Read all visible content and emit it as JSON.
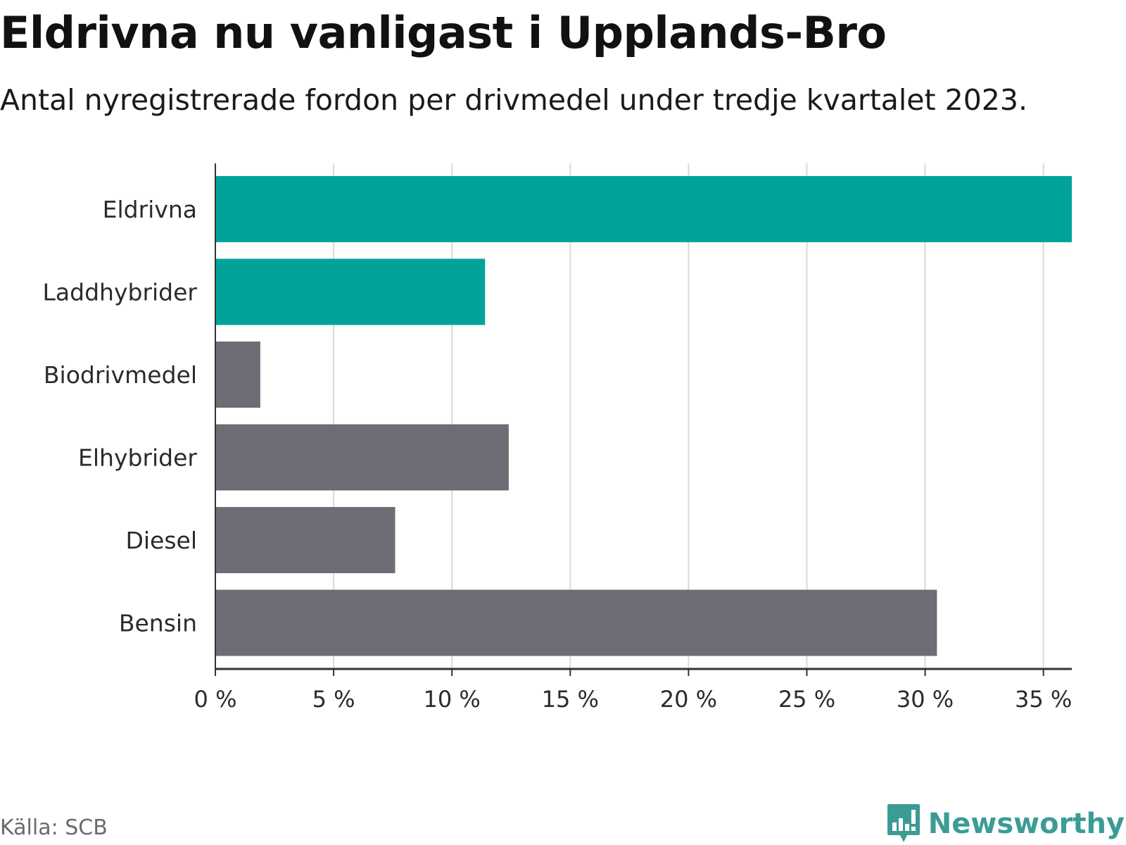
{
  "header": {
    "title": "Eldrivna nu vanligast i Upplands-Bro",
    "subtitle": "Antal nyregistrerade fordon per drivmedel under tredje kvartalet 2023."
  },
  "footer": {
    "source": "Källa: SCB",
    "brand": "Newsworthy",
    "brand_icon": "bar-chart-speech-icon"
  },
  "colors": {
    "highlight": "#00a39a",
    "default": "#6e6d75",
    "grid": "#d9d9d9",
    "axis": "#333333",
    "brand": "#3b9c95"
  },
  "chart_data": {
    "type": "bar",
    "orientation": "horizontal",
    "title": "Eldrivna nu vanligast i Upplands-Bro",
    "subtitle": "Antal nyregistrerade fordon per drivmedel under tredje kvartalet 2023.",
    "xlabel": "",
    "ylabel": "",
    "unit": "%",
    "xlim": [
      0,
      36.2
    ],
    "ticks": [
      0,
      5,
      10,
      15,
      20,
      25,
      30,
      35
    ],
    "tick_labels": [
      "0 %",
      "5 %",
      "10 %",
      "15 %",
      "20 %",
      "25 %",
      "30 %",
      "35 %"
    ],
    "grid": true,
    "categories": [
      "Eldrivna",
      "Laddhybrider",
      "Biodrivmedel",
      "Elhybrider",
      "Diesel",
      "Bensin"
    ],
    "values": [
      36.2,
      11.4,
      1.9,
      12.4,
      7.6,
      30.5
    ],
    "highlighted": [
      true,
      true,
      false,
      false,
      false,
      false
    ]
  }
}
